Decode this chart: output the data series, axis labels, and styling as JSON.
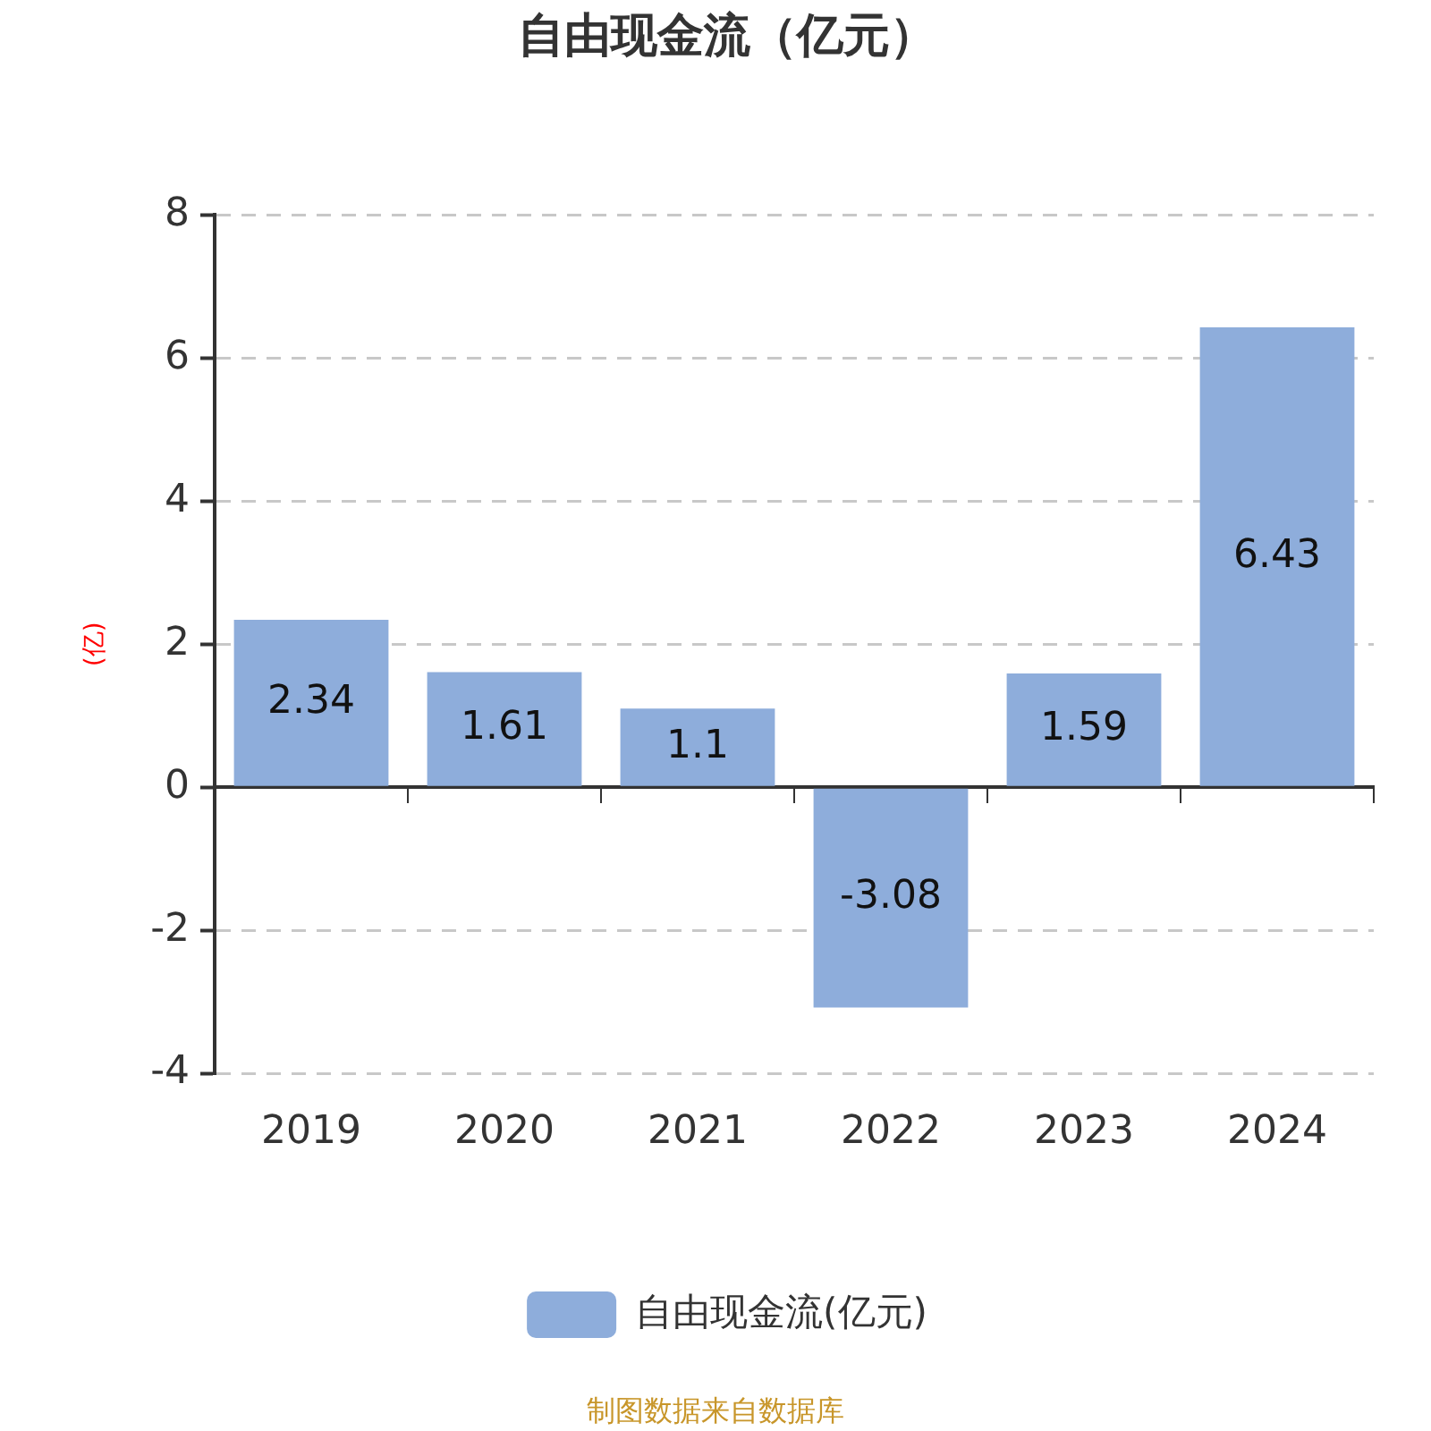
{
  "chart_data": {
    "type": "bar",
    "title": "自由现金流（亿元）",
    "ylabel": "(亿)",
    "categories": [
      "2019",
      "2020",
      "2021",
      "2022",
      "2023",
      "2024"
    ],
    "series": [
      {
        "name": "自由现金流(亿元)",
        "color": "#8eaddb",
        "values": [
          2.34,
          1.61,
          1.1,
          -3.08,
          1.59,
          6.43
        ]
      }
    ],
    "ylim": [
      -4,
      8
    ],
    "yticks": [
      -4,
      -2,
      0,
      2,
      4,
      6,
      8
    ],
    "grid": "y",
    "legend": "bottom",
    "data_labels": true,
    "annotations": [
      "制图数据来自数据库"
    ]
  }
}
